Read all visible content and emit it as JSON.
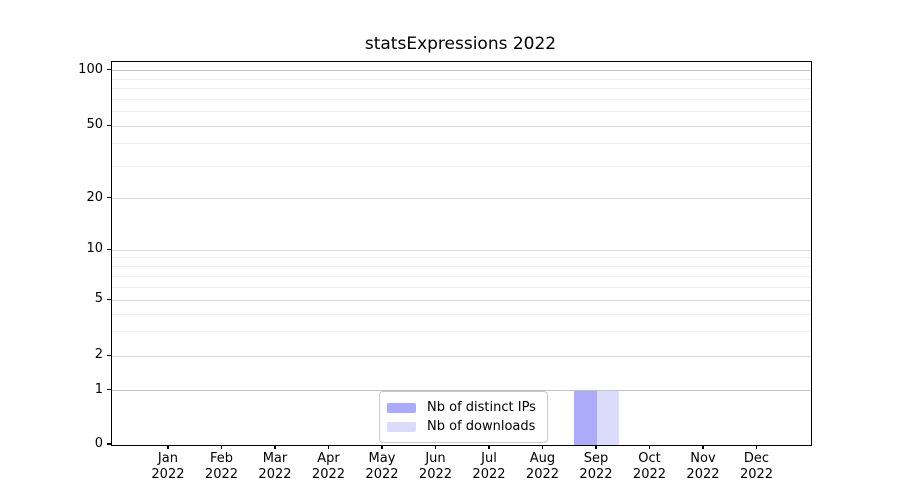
{
  "title": "statsExpressions 2022",
  "legend": {
    "items": [
      {
        "label": "Nb of distinct IPs",
        "color": "#ababfa"
      },
      {
        "label": "Nb of downloads",
        "color": "#dbdcfb"
      }
    ]
  },
  "chart_data": {
    "type": "bar",
    "title": "statsExpressions 2022",
    "categories": [
      "Jan 2022",
      "Feb 2022",
      "Mar 2022",
      "Apr 2022",
      "May 2022",
      "Jun 2022",
      "Jul 2022",
      "Aug 2022",
      "Sep 2022",
      "Oct 2022",
      "Nov 2022",
      "Dec 2022"
    ],
    "series": [
      {
        "name": "Nb of distinct IPs",
        "color": "#ababfa",
        "values": [
          0,
          0,
          0,
          0,
          0,
          0,
          0,
          0,
          1,
          0,
          0,
          0
        ]
      },
      {
        "name": "Nb of downloads",
        "color": "#dbdcfb",
        "values": [
          0,
          0,
          0,
          0,
          0,
          0,
          0,
          0,
          1,
          0,
          0,
          0
        ]
      }
    ],
    "y_scale": "symlog",
    "y_ticks": [
      0,
      1,
      2,
      5,
      10,
      20,
      50,
      100
    ],
    "y_minor_ticks": [
      3,
      4,
      6,
      7,
      8,
      9,
      30,
      40,
      60,
      70,
      80,
      90
    ],
    "ylim": [
      0,
      115
    ],
    "xlabel": "",
    "ylabel": "",
    "grid": "horizontal",
    "legend_position": "inside-bottom-center"
  }
}
